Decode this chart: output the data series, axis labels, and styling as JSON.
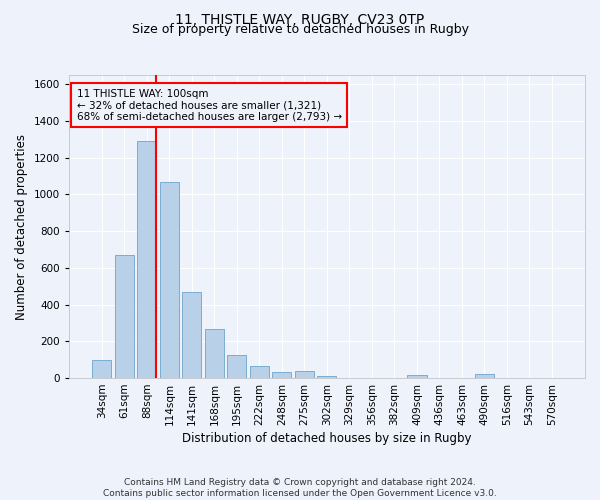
{
  "title_line1": "11, THISTLE WAY, RUGBY, CV23 0TP",
  "title_line2": "Size of property relative to detached houses in Rugby",
  "xlabel": "Distribution of detached houses by size in Rugby",
  "ylabel": "Number of detached properties",
  "footer_line1": "Contains HM Land Registry data © Crown copyright and database right 2024.",
  "footer_line2": "Contains public sector information licensed under the Open Government Licence v3.0.",
  "annotation_line1": "11 THISTLE WAY: 100sqm",
  "annotation_line2": "← 32% of detached houses are smaller (1,321)",
  "annotation_line3": "68% of semi-detached houses are larger (2,793) →",
  "bar_categories": [
    "34sqm",
    "61sqm",
    "88sqm",
    "114sqm",
    "141sqm",
    "168sqm",
    "195sqm",
    "222sqm",
    "248sqm",
    "275sqm",
    "302sqm",
    "329sqm",
    "356sqm",
    "382sqm",
    "409sqm",
    "436sqm",
    "463sqm",
    "490sqm",
    "516sqm",
    "543sqm",
    "570sqm"
  ],
  "bar_values": [
    97,
    668,
    1290,
    1068,
    468,
    265,
    128,
    67,
    32,
    37,
    12,
    0,
    0,
    0,
    15,
    0,
    0,
    22,
    0,
    0,
    0
  ],
  "bar_color": "#b8d0e8",
  "bar_edge_color": "#7aadd4",
  "vline_x_index": 2,
  "vline_color": "red",
  "annotation_box_color": "red",
  "ylim": [
    0,
    1650
  ],
  "yticks": [
    0,
    200,
    400,
    600,
    800,
    1000,
    1200,
    1400,
    1600
  ],
  "bg_color": "#eef2fb",
  "grid_color": "#ffffff",
  "title_fontsize": 10,
  "subtitle_fontsize": 9,
  "axis_label_fontsize": 8.5,
  "tick_fontsize": 7.5,
  "footer_fontsize": 6.5,
  "ann_fontsize": 7.5
}
